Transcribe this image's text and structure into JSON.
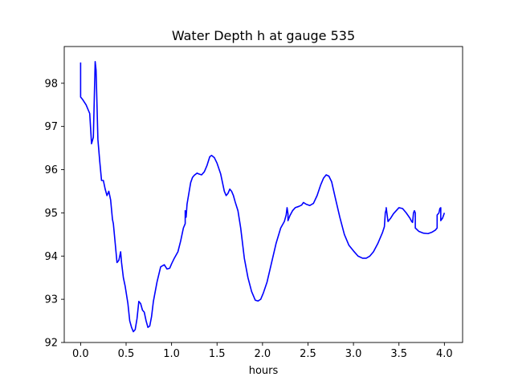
{
  "chart_data": {
    "type": "line",
    "title": "Water Depth h at gauge 535",
    "xlabel": "hours",
    "ylabel": "",
    "xlim": [
      -0.18,
      4.2
    ],
    "ylim": [
      92.0,
      98.85
    ],
    "xticks": [
      0.0,
      0.5,
      1.0,
      1.5,
      2.0,
      2.5,
      3.0,
      3.5,
      4.0
    ],
    "xtick_labels": [
      "0.0",
      "0.5",
      "1.0",
      "1.5",
      "2.0",
      "2.5",
      "3.0",
      "3.5",
      "4.0"
    ],
    "yticks": [
      92,
      93,
      94,
      95,
      96,
      97,
      98
    ],
    "ytick_labels": [
      "92",
      "93",
      "94",
      "95",
      "96",
      "97",
      "98"
    ],
    "grid": false,
    "series": [
      {
        "color": "#0000ff",
        "x": [
          0.0,
          0.0,
          0.02,
          0.06,
          0.1,
          0.12,
          0.14,
          0.16,
          0.17,
          0.19,
          0.21,
          0.23,
          0.25,
          0.27,
          0.29,
          0.31,
          0.33,
          0.35,
          0.36,
          0.38,
          0.4,
          0.42,
          0.44,
          0.45,
          0.47,
          0.49,
          0.52,
          0.54,
          0.56,
          0.58,
          0.6,
          0.62,
          0.64,
          0.66,
          0.68,
          0.7,
          0.72,
          0.74,
          0.76,
          0.78,
          0.8,
          0.84,
          0.88,
          0.92,
          0.95,
          0.98,
          1.0,
          1.03,
          1.07,
          1.1,
          1.13,
          1.15,
          1.15,
          1.16,
          1.17,
          1.19,
          1.21,
          1.23,
          1.25,
          1.28,
          1.3,
          1.33,
          1.36,
          1.39,
          1.42,
          1.44,
          1.47,
          1.5,
          1.54,
          1.58,
          1.6,
          1.62,
          1.64,
          1.66,
          1.68,
          1.7,
          1.73,
          1.76,
          1.8,
          1.84,
          1.88,
          1.92,
          1.95,
          1.98,
          2.01,
          2.05,
          2.1,
          2.15,
          2.2,
          2.24,
          2.26,
          2.27,
          2.28,
          2.28,
          2.3,
          2.33,
          2.36,
          2.4,
          2.43,
          2.45,
          2.48,
          2.52,
          2.56,
          2.6,
          2.64,
          2.67,
          2.7,
          2.73,
          2.76,
          2.8,
          2.85,
          2.9,
          2.95,
          3.0,
          3.05,
          3.1,
          3.14,
          3.18,
          3.22,
          3.27,
          3.32,
          3.34,
          3.35,
          3.36,
          3.36,
          3.38,
          3.41,
          3.44,
          3.47,
          3.5,
          3.54,
          3.58,
          3.62,
          3.64,
          3.65,
          3.66,
          3.67,
          3.68,
          3.68,
          3.72,
          3.77,
          3.82,
          3.86,
          3.9,
          3.92,
          3.92,
          3.94,
          3.95,
          3.96,
          3.96,
          3.98,
          4.0
        ],
        "y": [
          98.48,
          97.68,
          97.63,
          97.5,
          97.3,
          96.6,
          96.75,
          98.5,
          98.3,
          96.7,
          96.2,
          95.75,
          95.75,
          95.55,
          95.4,
          95.5,
          95.3,
          94.85,
          94.75,
          94.3,
          93.85,
          93.9,
          94.1,
          93.85,
          93.5,
          93.3,
          92.9,
          92.5,
          92.35,
          92.25,
          92.3,
          92.55,
          92.95,
          92.9,
          92.75,
          92.7,
          92.5,
          92.35,
          92.38,
          92.6,
          92.95,
          93.4,
          93.75,
          93.8,
          93.7,
          93.72,
          93.82,
          93.95,
          94.1,
          94.35,
          94.65,
          94.75,
          95.05,
          94.9,
          95.2,
          95.45,
          95.7,
          95.82,
          95.87,
          95.92,
          95.9,
          95.88,
          95.95,
          96.1,
          96.3,
          96.33,
          96.28,
          96.15,
          95.9,
          95.5,
          95.4,
          95.45,
          95.55,
          95.5,
          95.4,
          95.25,
          95.05,
          94.65,
          93.95,
          93.5,
          93.18,
          92.98,
          92.96,
          93.0,
          93.15,
          93.4,
          93.85,
          94.3,
          94.65,
          94.8,
          94.95,
          95.12,
          94.98,
          94.82,
          94.93,
          95.05,
          95.12,
          95.15,
          95.18,
          95.24,
          95.2,
          95.17,
          95.22,
          95.4,
          95.65,
          95.8,
          95.88,
          95.85,
          95.72,
          95.35,
          94.9,
          94.5,
          94.25,
          94.12,
          94.0,
          93.95,
          93.95,
          94.0,
          94.1,
          94.3,
          94.55,
          94.68,
          95.0,
          95.08,
          95.12,
          94.8,
          94.88,
          94.98,
          95.05,
          95.12,
          95.1,
          95.0,
          94.88,
          94.8,
          94.78,
          95.0,
          95.05,
          95.0,
          94.65,
          94.57,
          94.53,
          94.52,
          94.55,
          94.6,
          94.65,
          94.95,
          95.0,
          95.1,
          95.12,
          94.82,
          94.88,
          95.0
        ]
      }
    ]
  }
}
